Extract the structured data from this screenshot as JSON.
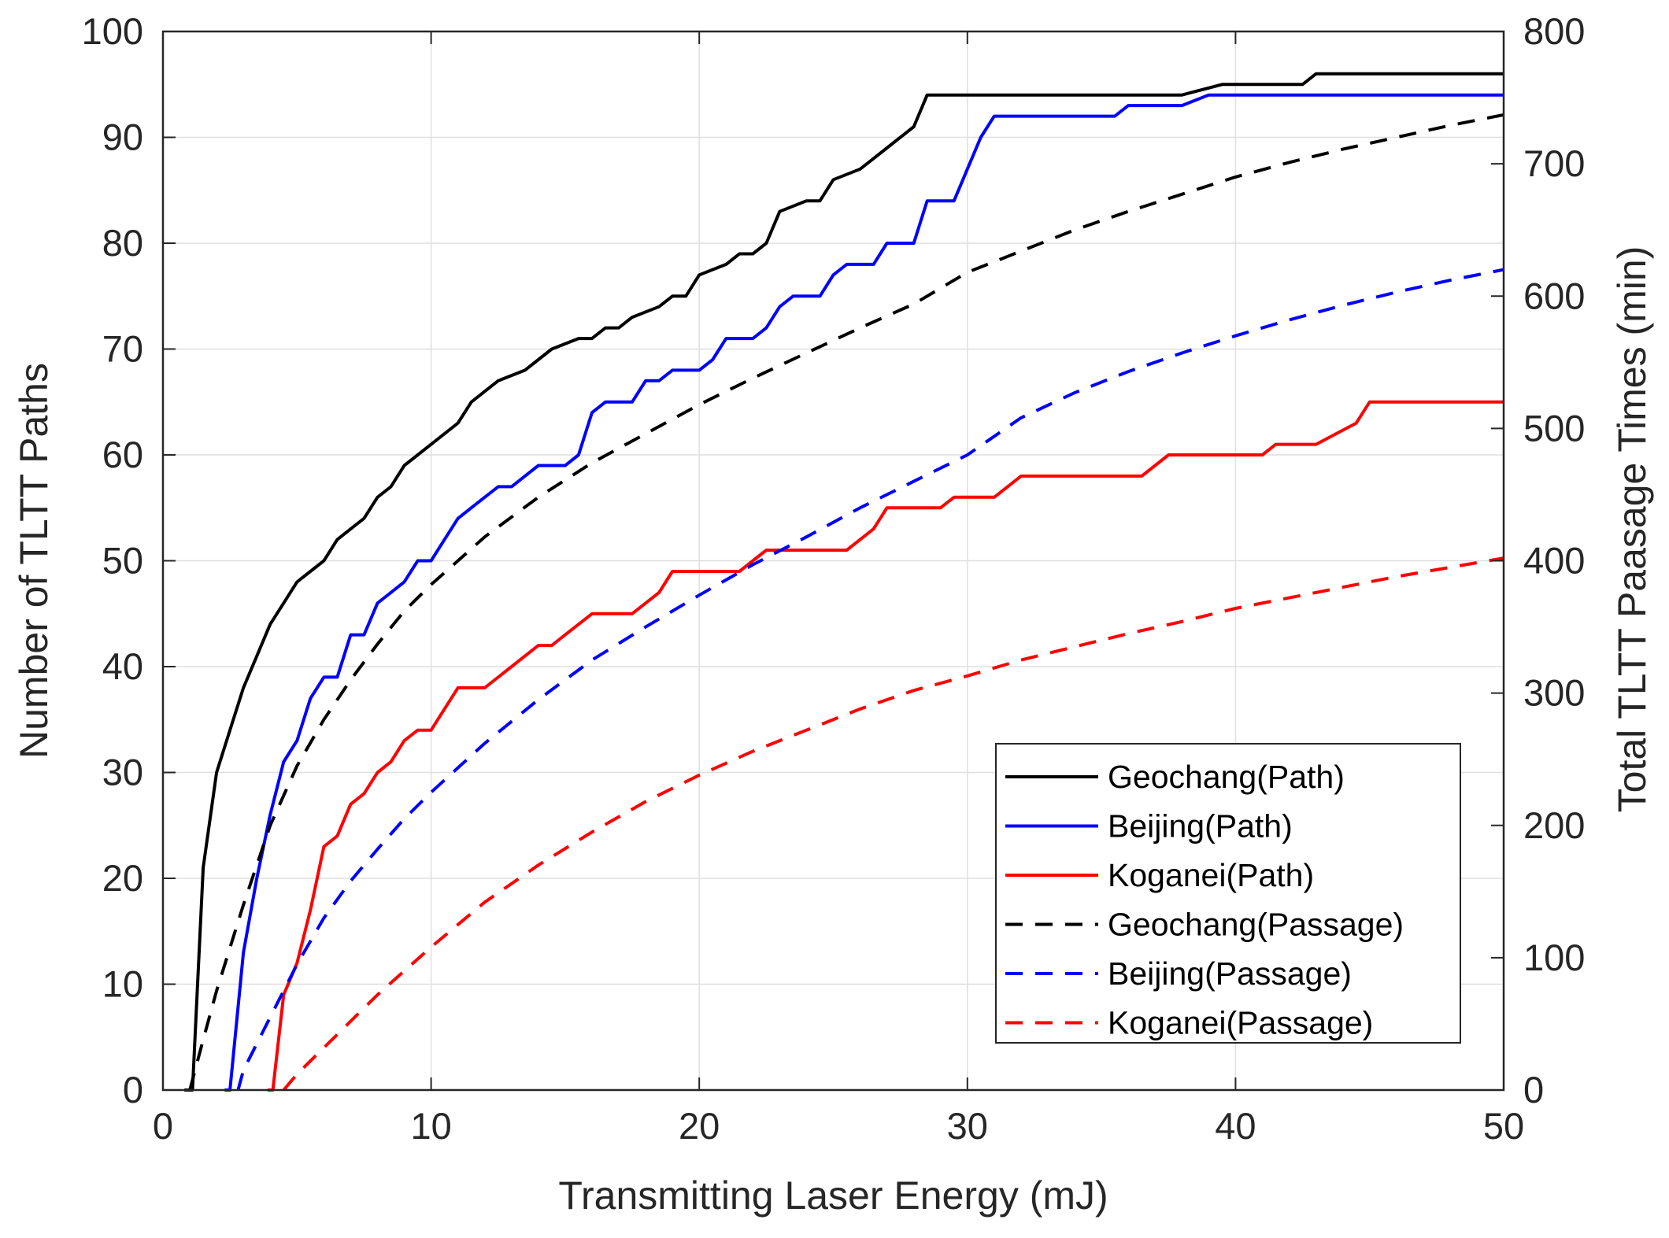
{
  "chart_data": {
    "type": "line",
    "xlabel": "Transmitting Laser Energy (mJ)",
    "ylabel_left": "Number of TLTT Paths",
    "ylabel_right": "Total TLTT Paasage Times (min)",
    "xlim": [
      0,
      50
    ],
    "ylim_left": [
      0,
      100
    ],
    "ylim_right": [
      0,
      800
    ],
    "x_ticks": [
      "0",
      "10",
      "20",
      "30",
      "40",
      "50"
    ],
    "y_left_ticks": [
      "0",
      "10",
      "20",
      "30",
      "40",
      "50",
      "60",
      "70",
      "80",
      "90",
      "100"
    ],
    "y_right_ticks": [
      "0",
      "100",
      "200",
      "300",
      "400",
      "500",
      "600",
      "700",
      "800"
    ],
    "grid": true,
    "legend_position": "bottom-right",
    "series": [
      {
        "name": "Geochang(Path)",
        "axis": "left",
        "style": "solid",
        "color": "#000000",
        "x": [
          0.8,
          1.1,
          1.5,
          2.0,
          2.5,
          3.0,
          3.5,
          4.0,
          4.5,
          5.0,
          5.5,
          6.0,
          6.5,
          7.0,
          7.5,
          8.0,
          8.5,
          9.0,
          9.5,
          10.0,
          11.0,
          11.5,
          12.0,
          12.5,
          13.5,
          14.0,
          14.5,
          15.5,
          16.0,
          16.5,
          17.0,
          17.5,
          18.5,
          19.0,
          19.5,
          20.0,
          21.0,
          21.5,
          22.0,
          22.5,
          23.0,
          24.0,
          24.5,
          25.0,
          26.0,
          27.0,
          28.0,
          28.5,
          38.0,
          39.5,
          42.5,
          43.0,
          50.0
        ],
        "values": [
          0,
          0,
          21,
          30,
          34,
          38,
          41,
          44,
          46,
          48,
          49,
          50,
          52,
          53,
          54,
          56,
          57,
          59,
          60,
          61,
          63,
          65,
          66,
          67,
          68,
          69,
          70,
          71,
          71,
          72,
          72,
          73,
          74,
          75,
          75,
          77,
          78,
          79,
          79,
          80,
          83,
          84,
          84,
          86,
          87,
          89,
          91,
          94,
          94,
          95,
          95,
          96,
          96
        ]
      },
      {
        "name": "Beijing(Path)",
        "axis": "left",
        "style": "solid",
        "color": "#0000ff",
        "x": [
          2.3,
          2.5,
          3.0,
          3.5,
          4.0,
          4.5,
          5.0,
          5.5,
          6.0,
          6.5,
          7.0,
          7.5,
          8.0,
          8.5,
          9.0,
          9.5,
          10.0,
          10.5,
          11.0,
          11.5,
          12.0,
          12.5,
          13.0,
          13.5,
          14.0,
          14.5,
          15.0,
          15.5,
          16.0,
          16.5,
          17.0,
          17.5,
          18.0,
          18.5,
          19.0,
          19.5,
          20.0,
          20.5,
          21.0,
          21.5,
          22.0,
          22.5,
          23.0,
          23.5,
          24.0,
          24.5,
          25.0,
          25.5,
          26.0,
          26.5,
          27.0,
          27.5,
          28.0,
          28.5,
          29.0,
          29.5,
          30.0,
          30.5,
          31.0,
          35.5,
          36.0,
          37.5,
          38.0,
          39.0,
          50.0
        ],
        "values": [
          0,
          0,
          13,
          20,
          26,
          31,
          33,
          37,
          39,
          39,
          43,
          43,
          46,
          47,
          48,
          50,
          50,
          52,
          54,
          55,
          56,
          57,
          57,
          58,
          59,
          59,
          59,
          60,
          64,
          65,
          65,
          65,
          67,
          67,
          68,
          68,
          68,
          69,
          71,
          71,
          71,
          72,
          74,
          75,
          75,
          75,
          77,
          78,
          78,
          78,
          80,
          80,
          80,
          84,
          84,
          84,
          87,
          90,
          92,
          92,
          93,
          93,
          93,
          94,
          94
        ]
      },
      {
        "name": "Koganei(Path)",
        "axis": "left",
        "style": "solid",
        "color": "#ff0000",
        "x": [
          3.9,
          4.1,
          4.5,
          5.0,
          5.5,
          6.0,
          6.5,
          7.0,
          7.5,
          8.0,
          8.5,
          9.0,
          9.5,
          10.0,
          11.0,
          12.0,
          13.0,
          14.0,
          14.5,
          15.0,
          16.0,
          17.0,
          17.5,
          18.0,
          18.5,
          19.0,
          20.0,
          21.0,
          21.5,
          22.0,
          22.5,
          23.0,
          25.5,
          26.0,
          26.5,
          27.0,
          28.5,
          29.0,
          29.5,
          31.0,
          31.5,
          32.0,
          36.5,
          37.0,
          37.5,
          38.0,
          41.0,
          41.5,
          43.0,
          44.5,
          45.0,
          50.0
        ],
        "values": [
          0,
          0,
          9,
          12,
          17,
          23,
          24,
          27,
          28,
          30,
          31,
          33,
          34,
          34,
          38,
          38,
          40,
          42,
          42,
          43,
          45,
          45,
          45,
          46,
          47,
          49,
          49,
          49,
          49,
          50,
          51,
          51,
          51,
          52,
          53,
          55,
          55,
          55,
          56,
          56,
          57,
          58,
          58,
          59,
          60,
          60,
          60,
          61,
          61,
          63,
          65,
          65
        ]
      },
      {
        "name": "Geochang(Passage)",
        "axis": "right",
        "style": "dashed",
        "color": "#000000",
        "x": [
          1.0,
          1.5,
          2,
          3,
          4,
          5,
          6,
          7,
          8,
          9,
          10,
          12,
          14,
          16,
          18,
          20,
          22,
          24,
          26,
          28,
          30,
          32,
          34,
          36,
          38,
          40,
          42,
          44,
          46,
          48,
          50
        ],
        "values": [
          0,
          38,
          75,
          140,
          200,
          245,
          280,
          310,
          337,
          362,
          382,
          418,
          448,
          474,
          496,
          518,
          538,
          557,
          576,
          594,
          618,
          634,
          650,
          664,
          677,
          690,
          701,
          711,
          720,
          729,
          737
        ]
      },
      {
        "name": "Beijing(Passage)",
        "axis": "right",
        "style": "dashed",
        "color": "#0000ff",
        "x": [
          2.8,
          3,
          4,
          5,
          6,
          7,
          8,
          9,
          10,
          12,
          14,
          16,
          18,
          20,
          22,
          24,
          26,
          28,
          30,
          32,
          34,
          36,
          38,
          40,
          42,
          44,
          46,
          48,
          50
        ],
        "values": [
          0,
          15,
          55,
          95,
          130,
          158,
          182,
          205,
          225,
          262,
          295,
          325,
          350,
          374,
          397,
          418,
          440,
          460,
          480,
          508,
          527,
          543,
          557,
          570,
          582,
          593,
          603,
          612,
          620
        ]
      },
      {
        "name": "Koganei(Passage)",
        "axis": "right",
        "style": "dashed",
        "color": "#ff0000",
        "x": [
          4.5,
          5,
          6,
          7,
          8,
          9,
          10,
          12,
          14,
          16,
          18,
          20,
          22,
          24,
          26,
          28,
          30,
          32,
          34,
          36,
          38,
          40,
          42,
          44,
          46,
          48,
          50
        ],
        "values": [
          0,
          12,
          32,
          52,
          72,
          90,
          108,
          142,
          170,
          195,
          218,
          238,
          256,
          272,
          288,
          302,
          313,
          325,
          335,
          345,
          354,
          364,
          372,
          380,
          388,
          395,
          402
        ]
      }
    ]
  }
}
